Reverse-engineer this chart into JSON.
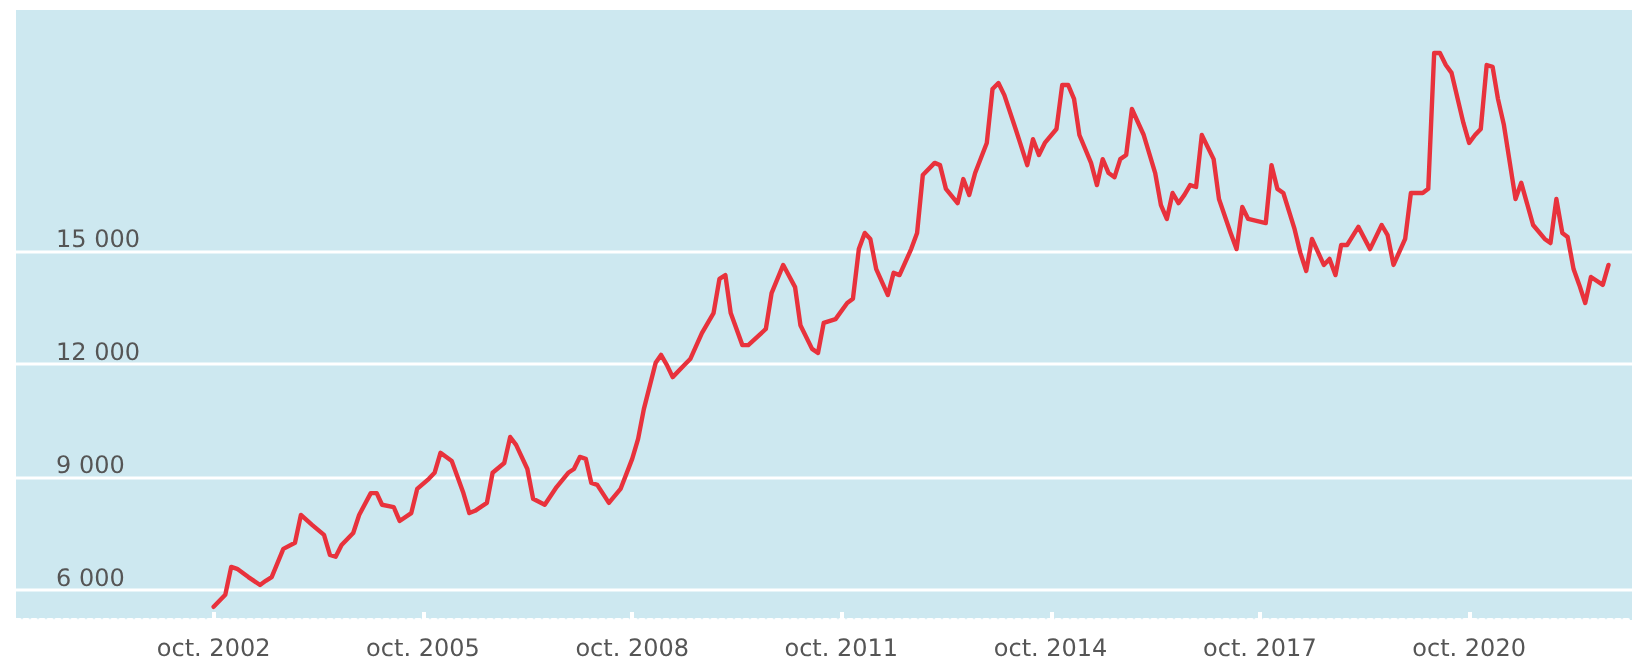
{
  "chart_data": {
    "type": "line",
    "x": [
      "2002-10",
      "2002-12",
      "2003-01",
      "2003-02",
      "2003-04",
      "2003-06",
      "2003-07",
      "2003-08",
      "2003-10",
      "2003-12",
      "2004-01",
      "2004-03",
      "2004-05",
      "2004-06",
      "2004-07",
      "2004-08",
      "2004-10",
      "2004-11",
      "2005-01",
      "2005-02",
      "2005-03",
      "2005-05",
      "2005-06",
      "2005-08",
      "2005-09",
      "2005-11",
      "2005-12",
      "2006-01",
      "2006-03",
      "2006-05",
      "2006-06",
      "2006-07",
      "2006-09",
      "2006-10",
      "2006-12",
      "2007-01",
      "2007-02",
      "2007-04",
      "2007-05",
      "2007-07",
      "2007-09",
      "2007-11",
      "2007-12",
      "2008-01",
      "2008-02",
      "2008-03",
      "2008-04",
      "2008-06",
      "2008-08",
      "2008-10",
      "2008-11",
      "2008-12",
      "2009-02",
      "2009-03",
      "2009-04",
      "2009-05",
      "2009-07",
      "2009-08",
      "2009-10",
      "2009-12",
      "2010-01",
      "2010-02",
      "2010-03",
      "2010-05",
      "2010-06",
      "2010-09",
      "2010-10",
      "2010-12",
      "2011-02",
      "2011-03",
      "2011-05",
      "2011-06",
      "2011-07",
      "2011-09",
      "2011-11",
      "2011-12",
      "2012-01",
      "2012-02",
      "2012-03",
      "2012-04",
      "2012-06",
      "2012-07",
      "2012-08",
      "2012-10",
      "2012-11",
      "2012-12",
      "2013-02",
      "2013-03",
      "2013-04",
      "2013-06",
      "2013-07",
      "2013-08",
      "2013-09",
      "2013-11",
      "2013-12",
      "2014-01",
      "2014-02",
      "2014-04",
      "2014-06",
      "2014-07",
      "2014-08",
      "2014-09",
      "2014-11",
      "2014-12",
      "2015-01",
      "2015-02",
      "2015-03",
      "2015-05",
      "2015-06",
      "2015-07",
      "2015-08",
      "2015-09",
      "2015-10",
      "2015-11",
      "2015-12",
      "2016-02",
      "2016-04",
      "2016-05",
      "2016-06",
      "2016-07",
      "2016-08",
      "2016-09",
      "2016-10",
      "2016-11",
      "2016-12",
      "2017-02",
      "2017-03",
      "2017-05",
      "2017-06",
      "2017-07",
      "2017-08",
      "2017-11",
      "2017-12",
      "2018-01",
      "2018-02",
      "2018-04",
      "2018-05",
      "2018-06",
      "2018-07",
      "2018-09",
      "2018-10",
      "2018-11",
      "2018-12",
      "2019-01",
      "2019-03",
      "2019-05",
      "2019-07",
      "2019-08",
      "2019-09",
      "2019-11",
      "2019-12",
      "2020-02",
      "2020-03",
      "2020-04",
      "2020-05",
      "2020-06",
      "2020-07",
      "2020-09",
      "2020-10",
      "2020-11",
      "2020-12",
      "2021-01",
      "2021-02",
      "2021-03",
      "2021-04",
      "2021-06",
      "2021-07",
      "2021-09",
      "2021-11",
      "2021-12",
      "2022-01",
      "2022-02",
      "2022-03",
      "2022-04",
      "2022-05",
      "2022-06",
      "2022-07",
      "2022-09",
      "2022-10"
    ],
    "series": [
      {
        "color": "#e8323c",
        "values": [
          5550,
          5870,
          6610,
          6560,
          6340,
          6130,
          6240,
          6340,
          7090,
          7250,
          7990,
          7720,
          7460,
          6930,
          6880,
          7190,
          7510,
          7990,
          8570,
          8570,
          8260,
          8200,
          7830,
          8040,
          8680,
          8950,
          9110,
          9640,
          9420,
          8570,
          8040,
          8100,
          8310,
          9110,
          9370,
          10060,
          9850,
          9210,
          8420,
          8260,
          8730,
          9110,
          9210,
          9530,
          9480,
          8840,
          8790,
          8310,
          8680,
          9480,
          10010,
          10800,
          12030,
          12240,
          11970,
          11650,
          11970,
          12130,
          12820,
          13350,
          14260,
          14360,
          13350,
          12500,
          12500,
          12930,
          13880,
          14630,
          14040,
          13030,
          12400,
          12290,
          13090,
          13190,
          13620,
          13730,
          15050,
          15480,
          15320,
          14520,
          13830,
          14420,
          14360,
          15050,
          15480,
          17020,
          17340,
          17280,
          16650,
          16270,
          16910,
          16490,
          17070,
          17870,
          19300,
          19460,
          19140,
          18240,
          17280,
          17970,
          17550,
          17870,
          18240,
          19410,
          19410,
          19040,
          18080,
          17340,
          16750,
          17440,
          17070,
          16960,
          17440,
          17550,
          18770,
          18080,
          17070,
          16220,
          15850,
          16540,
          16270,
          16490,
          16750,
          16700,
          18080,
          17440,
          16380,
          15480,
          15050,
          16170,
          15850,
          15740,
          17280,
          16650,
          16540,
          15580,
          14950,
          14470,
          15320,
          14630,
          14790,
          14360,
          15160,
          15160,
          15640,
          15050,
          15690,
          15420,
          14630,
          15320,
          16540,
          16540,
          16650,
          20260,
          20260,
          19940,
          19730,
          18400,
          17870,
          18080,
          18240,
          19940,
          19890,
          19040,
          18350,
          16380,
          16810,
          15690,
          15320,
          15210,
          16380,
          15480,
          15370,
          14520,
          14100,
          13620,
          14310,
          14100,
          14630
        ]
      }
    ],
    "xlim": [
      "1999-12",
      "2023-02"
    ],
    "xticks": [
      {
        "value": "2002-10",
        "label": "oct. 2002"
      },
      {
        "value": "2005-10",
        "label": "oct. 2005"
      },
      {
        "value": "2008-10",
        "label": "oct. 2008"
      },
      {
        "value": "2011-10",
        "label": "oct. 2011"
      },
      {
        "value": "2014-10",
        "label": "oct. 2014"
      },
      {
        "value": "2017-10",
        "label": "oct. 2017"
      },
      {
        "value": "2020-10",
        "label": "oct. 2020"
      }
    ],
    "ylim": [
      5200,
      21400
    ],
    "yticks": [
      {
        "value": 6000,
        "label": "6 000"
      },
      {
        "value": 9000,
        "label": "9 000"
      },
      {
        "value": 12000,
        "label": "12 000"
      },
      {
        "value": 15000,
        "label": "15 000"
      }
    ],
    "grid": "y",
    "marker": "none",
    "line_style": "solid"
  }
}
